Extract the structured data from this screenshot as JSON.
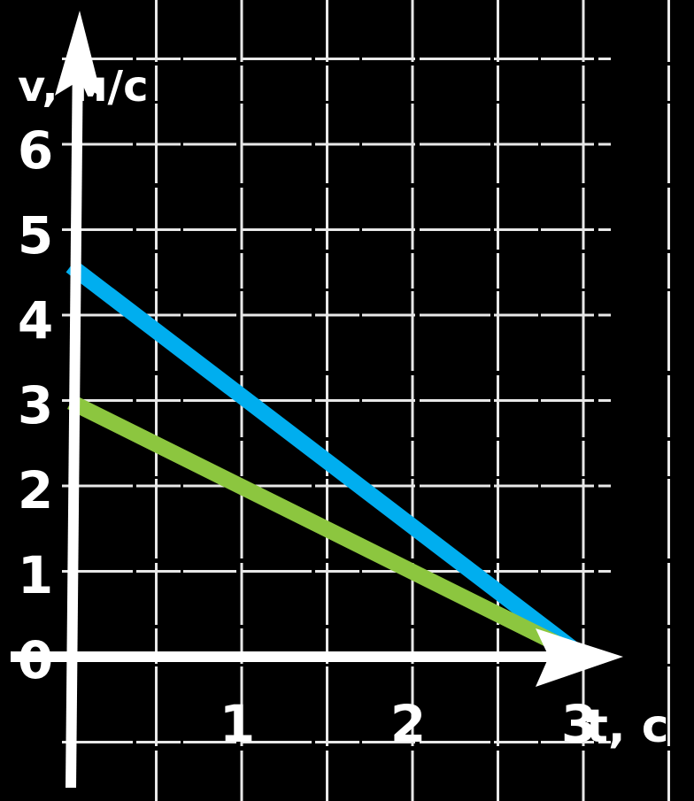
{
  "chart_data": {
    "type": "line",
    "title": "",
    "xlabel": "t, c",
    "ylabel": "v, м/с",
    "x_ticks": [
      "1",
      "2",
      "3"
    ],
    "y_ticks": [
      "0",
      "1",
      "2",
      "3",
      "4",
      "5",
      "6"
    ],
    "xlim": [
      0,
      3
    ],
    "ylim": [
      0,
      6
    ],
    "grid": true,
    "series": [
      {
        "color": "#00aeef",
        "x": [
          0,
          3
        ],
        "y": [
          4.6,
          0
        ]
      },
      {
        "color": "#8cc63f",
        "x": [
          0,
          3
        ],
        "y": [
          3,
          0
        ]
      }
    ]
  }
}
